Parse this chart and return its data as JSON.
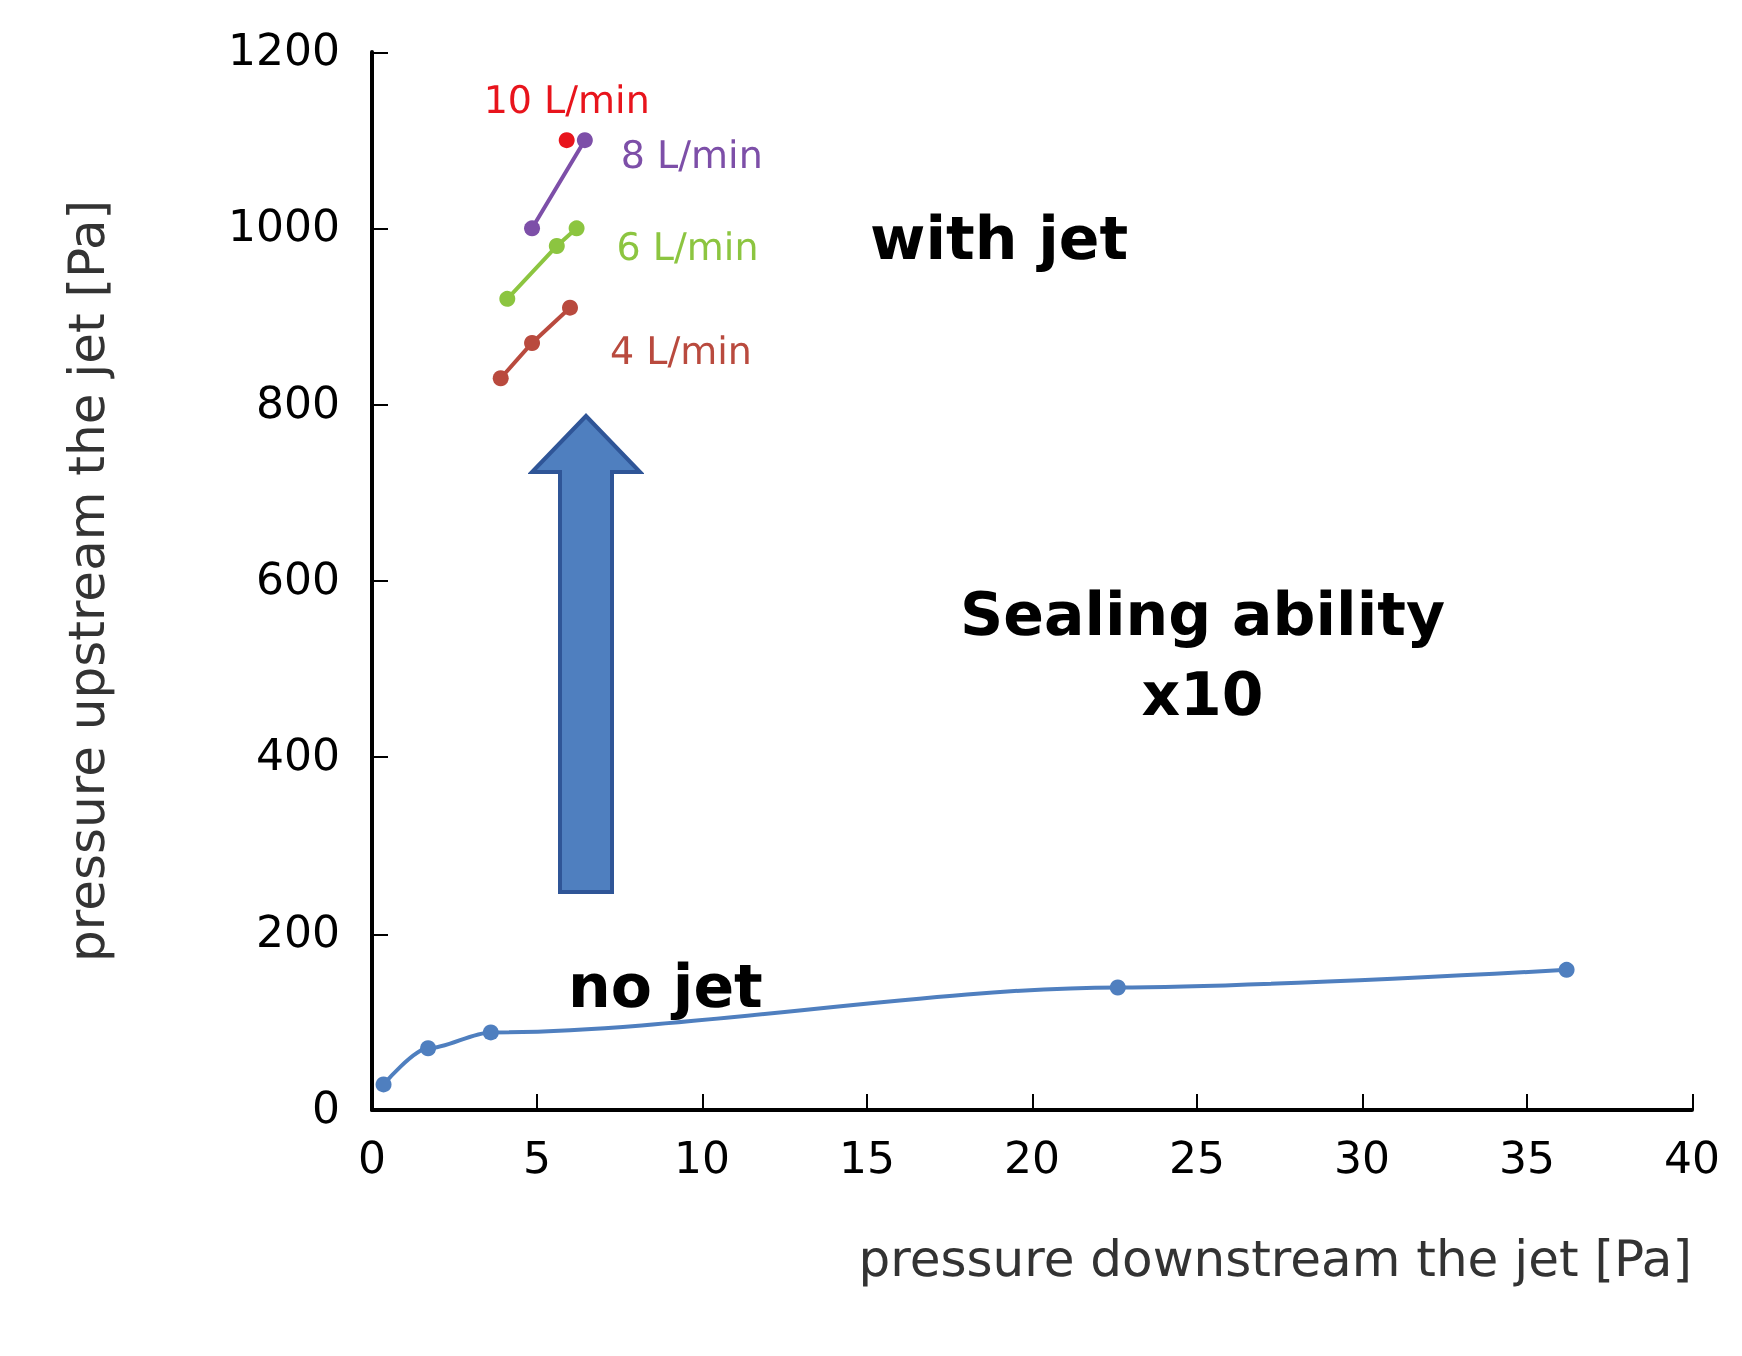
{
  "chart_data": {
    "type": "line",
    "xlabel": "pressure downstream the jet [Pa]",
    "ylabel": "pressure upstream the jet [Pa]",
    "xlim": [
      0,
      40
    ],
    "xticks": [
      0,
      5,
      10,
      15,
      20,
      25,
      30,
      35,
      40
    ],
    "ylim": [
      0,
      1200
    ],
    "yticks": [
      0,
      200,
      400,
      600,
      800,
      1000,
      1200
    ],
    "grid": false,
    "legend": false,
    "marker": "circle",
    "line_style": "solid",
    "series": [
      {
        "name": "10 L/min",
        "color": "#e8141c",
        "x": [
          5.9
        ],
        "values": [
          1100
        ]
      },
      {
        "name": "8 L/min",
        "color": "#7d4fa8",
        "x": [
          4.85,
          6.45
        ],
        "values": [
          1000,
          1100
        ]
      },
      {
        "name": "6 L/min",
        "color": "#8cc540",
        "x": [
          4.1,
          5.6,
          6.2
        ],
        "values": [
          920,
          980,
          1000
        ]
      },
      {
        "name": "4 L/min",
        "color": "#b94a3e",
        "x": [
          3.9,
          4.85,
          6.0
        ],
        "values": [
          830,
          870,
          910
        ]
      },
      {
        "color": "#4f7fbf",
        "x": [
          0.35,
          1.7,
          3.6,
          22.6,
          36.2
        ],
        "values": [
          29,
          70,
          88,
          139,
          159
        ]
      }
    ],
    "annotations": [
      "with jet",
      "Sealing ability\nx10",
      "no jet"
    ]
  }
}
